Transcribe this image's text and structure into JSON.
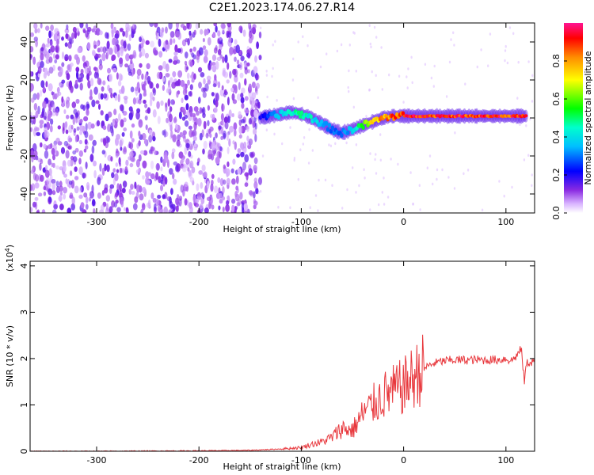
{
  "title": "C2E1.2023.174.06.27.R14",
  "chart_data": [
    {
      "type": "heatmap",
      "xlabel": "Height of straight line (km)",
      "ylabel": "Frequency (Hz)",
      "xlim": [
        -365,
        128
      ],
      "ylim": [
        -50,
        50
      ],
      "xticks": [
        -300,
        -200,
        -100,
        0,
        100
      ],
      "xtick_labels": [
        "-300",
        "-200",
        "-100",
        "0",
        "100"
      ],
      "yticks": [
        -40,
        -20,
        0,
        20,
        40
      ],
      "ytick_labels": [
        "-40",
        "-20",
        "0",
        "20",
        "40"
      ],
      "colorbar": {
        "label": "Normalized spectral amplitude",
        "range": [
          0,
          1
        ],
        "ticks": [
          0.0,
          0.2,
          0.4,
          0.6,
          0.8
        ],
        "tick_labels": [
          "0.0",
          "0.2",
          "0.4",
          "0.6",
          "0.8"
        ]
      },
      "ridge": {
        "x": [
          -140,
          -130,
          -120,
          -110,
          -100,
          -90,
          -80,
          -70,
          -60,
          -50,
          -40,
          -30,
          -20,
          -10,
          0,
          20,
          40,
          60,
          80,
          100,
          120
        ],
        "y": [
          0,
          1,
          2,
          3,
          2,
          0,
          -3,
          -6,
          -8,
          -6,
          -4,
          -2,
          0,
          1,
          1,
          1,
          1,
          1,
          1,
          1,
          1
        ],
        "amplitude": [
          0.2,
          0.3,
          0.4,
          0.45,
          0.5,
          0.45,
          0.35,
          0.3,
          0.3,
          0.4,
          0.6,
          0.75,
          0.85,
          0.9,
          0.95,
          0.95,
          0.95,
          0.95,
          0.95,
          0.95,
          0.9
        ]
      },
      "noise_region_x": [
        -365,
        -140
      ],
      "noise_amplitude": 0.1,
      "grid": false
    },
    {
      "type": "line",
      "xlabel": "Height of straight line (km)",
      "ylabel": "SNR (10 * v/v)",
      "yscale_label": "(x10",
      "yscale_exponent": "4",
      "yscale_suffix": ")",
      "xlim": [
        -365,
        128
      ],
      "ylim": [
        0,
        4.1
      ],
      "xticks": [
        -300,
        -200,
        -100,
        0,
        100
      ],
      "xtick_labels": [
        "-300",
        "-200",
        "-100",
        "0",
        "100"
      ],
      "yticks": [
        0,
        1,
        2,
        3,
        4
      ],
      "ytick_labels": [
        "0",
        "1",
        "2",
        "3",
        "4"
      ],
      "series": [
        {
          "color": "#e8383d",
          "x": [
            -365,
            -300,
            -200,
            -150,
            -120,
            -100,
            -90,
            -80,
            -70,
            -60,
            -50,
            -40,
            -30,
            -20,
            -10,
            0,
            10,
            20,
            30,
            40,
            50,
            60,
            70,
            80,
            90,
            95,
            100,
            105,
            110,
            115,
            118,
            120,
            128
          ],
          "y": [
            0.0,
            0.0,
            0.01,
            0.02,
            0.05,
            0.08,
            0.15,
            0.2,
            0.3,
            0.5,
            0.45,
            0.8,
            1.0,
            1.2,
            1.3,
            1.4,
            1.6,
            1.8,
            1.9,
            1.95,
            1.97,
            1.97,
            1.97,
            1.97,
            1.97,
            1.98,
            2.0,
            1.95,
            2.05,
            2.2,
            1.5,
            1.9,
            1.95
          ]
        }
      ],
      "grid": false
    }
  ]
}
